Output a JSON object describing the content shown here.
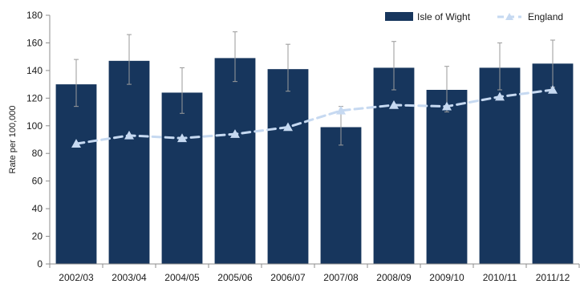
{
  "chart_data": {
    "type": "bar",
    "categories": [
      "2002/03",
      "2003/04",
      "2004/05",
      "2005/06",
      "2006/07",
      "2007/08",
      "2008/09",
      "2009/10",
      "2010/11",
      "2011/12"
    ],
    "series": [
      {
        "name": "Isle of Wight",
        "kind": "bar",
        "color": "#17365d",
        "values": [
          130,
          147,
          124,
          149,
          141,
          99,
          142,
          126,
          142,
          145
        ],
        "error_low": [
          114,
          130,
          109,
          132,
          125,
          86,
          126,
          110,
          126,
          128
        ],
        "error_high": [
          148,
          166,
          142,
          168,
          159,
          114,
          161,
          143,
          160,
          162
        ]
      },
      {
        "name": "England",
        "kind": "line",
        "color": "#c6d9f1",
        "marker": "triangle",
        "line_style": "dashed",
        "values": [
          87,
          93,
          91,
          94,
          99,
          111,
          115,
          114,
          121,
          126
        ]
      }
    ],
    "title": "",
    "xlabel": "",
    "ylabel": "Rate per 100,000",
    "ylim": [
      0,
      180
    ],
    "yticks": [
      0,
      20,
      40,
      60,
      80,
      100,
      120,
      140,
      160,
      180
    ],
    "grid": false,
    "legend_position": "top-right"
  }
}
